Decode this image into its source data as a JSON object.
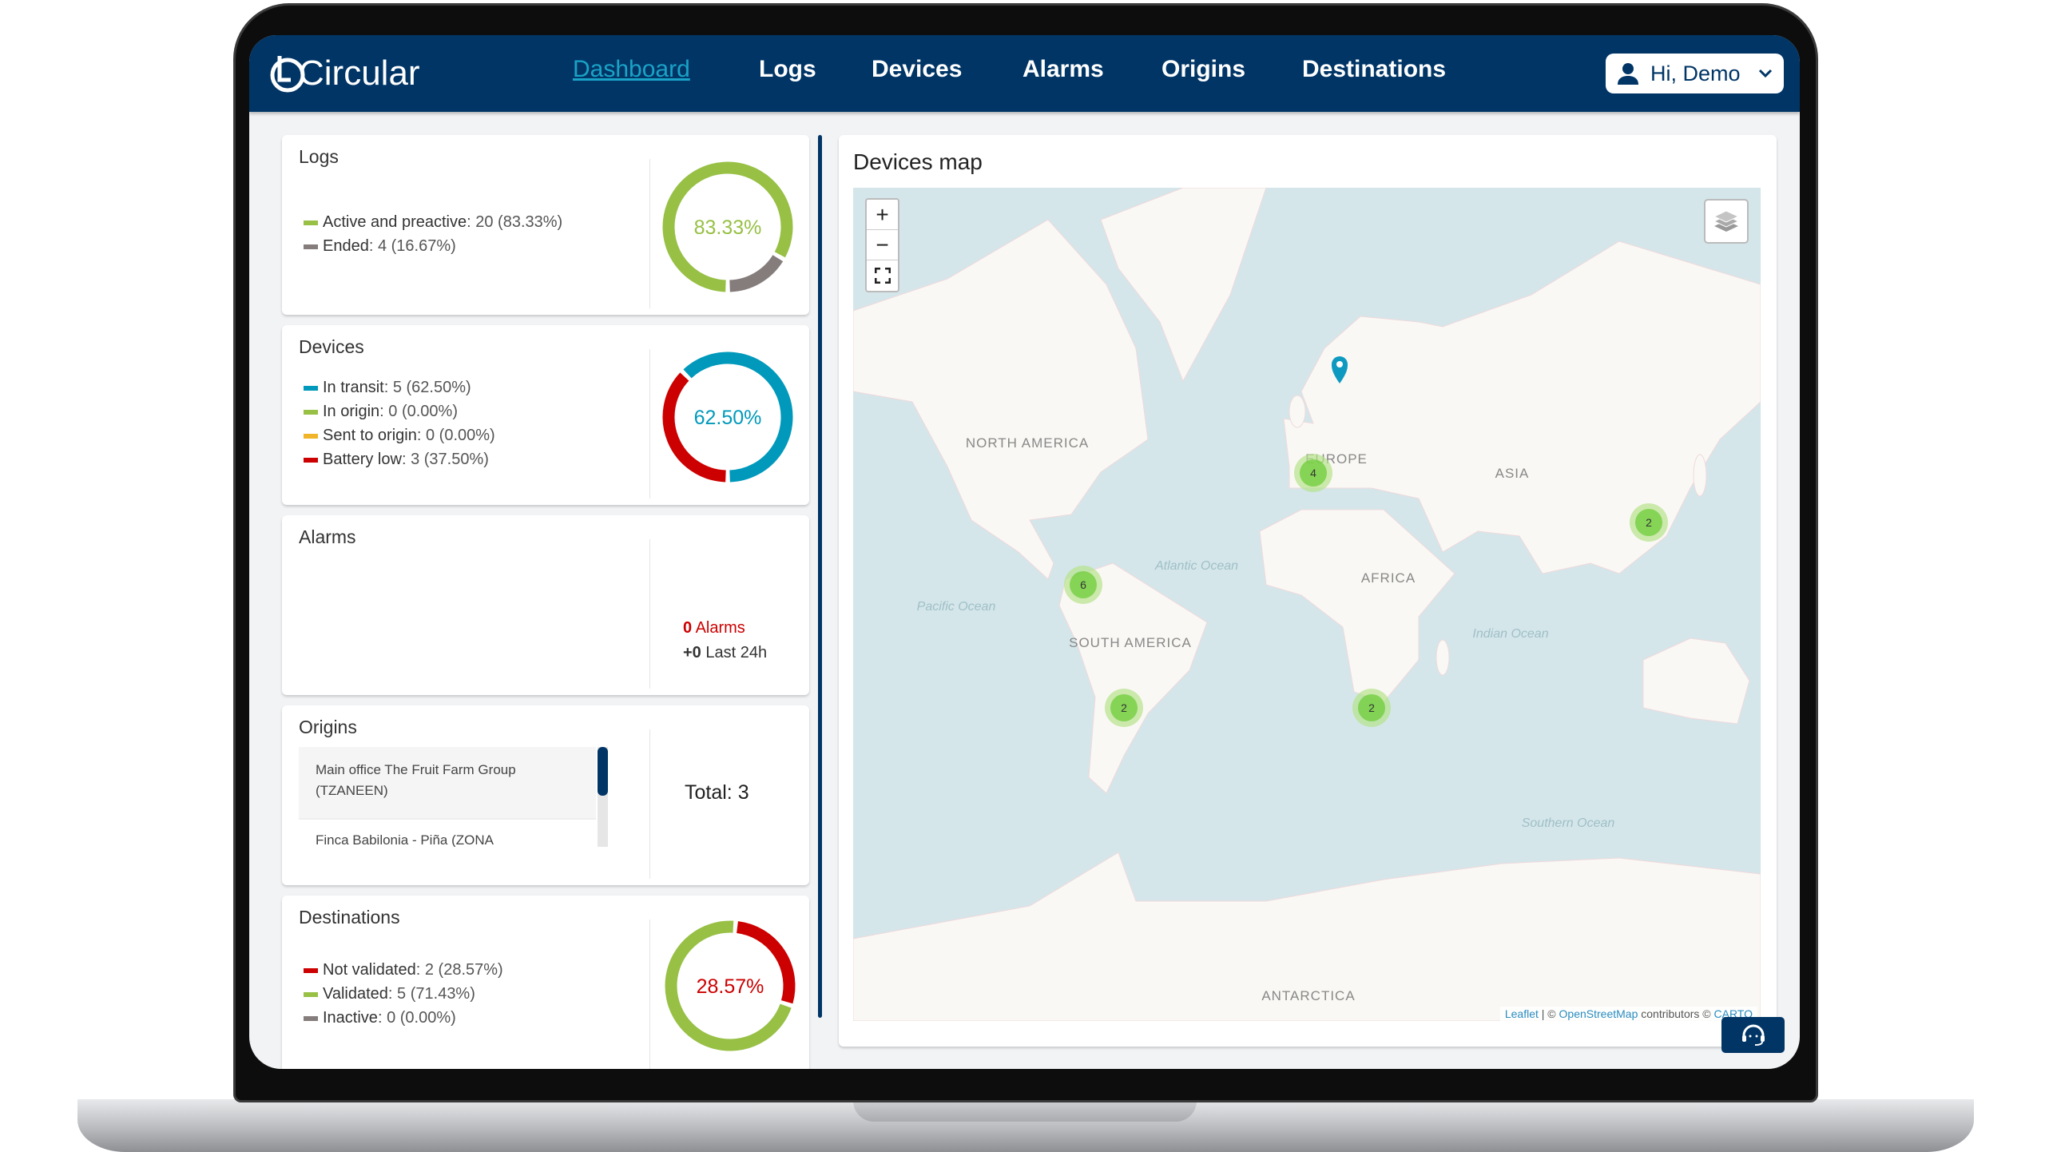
{
  "brand": {
    "name": "Circular"
  },
  "nav": {
    "items": [
      {
        "label": "Dashboard",
        "active": true
      },
      {
        "label": "Logs"
      },
      {
        "label": "Devices"
      },
      {
        "label": "Alarms"
      },
      {
        "label": "Origins"
      },
      {
        "label": "Destinations"
      }
    ],
    "user_label": "Hi, Demo",
    "user_icon": "user-icon",
    "chevron_icon": "chevron-down-icon"
  },
  "colors": {
    "navy": "#003566",
    "green": "#97c045",
    "gray": "#857c7c",
    "blue": "#0099bb",
    "red": "#cc0000",
    "yellow": "#f0b429"
  },
  "logs": {
    "title": "Logs",
    "legend": [
      {
        "label": "Active and preactive",
        "value": "20 (83.33%)",
        "color": "#97c045",
        "percent": 83.33
      },
      {
        "label": "Ended",
        "value": "4 (16.67%)",
        "color": "#857c7c",
        "percent": 16.67
      }
    ],
    "center": "83.33%"
  },
  "devices": {
    "title": "Devices",
    "legend": [
      {
        "label": "In transit",
        "value": "5 (62.50%)",
        "color": "#0099bb",
        "percent": 62.5
      },
      {
        "label": "In origin",
        "value": "0 (0.00%)",
        "color": "#97c045",
        "percent": 0
      },
      {
        "label": "Sent to origin",
        "value": "0 (0.00%)",
        "color": "#f0b429",
        "percent": 0
      },
      {
        "label": "Battery low",
        "value": "3 (37.50%)",
        "color": "#cc0000",
        "percent": 37.5
      }
    ],
    "center": "62.50%"
  },
  "alarms": {
    "title": "Alarms",
    "count": "0",
    "count_label": "Alarms",
    "delta": "+0",
    "delta_label": "Last 24h"
  },
  "origins": {
    "title": "Origins",
    "items": [
      "Main office The Fruit Farm Group (TZANEEN)",
      "Finca Babilonia - Piña (ZONA"
    ],
    "total": "Total: 3"
  },
  "destinations": {
    "title": "Destinations",
    "legend": [
      {
        "label": "Not validated",
        "value": "2 (28.57%)",
        "color": "#cc0000",
        "percent": 28.57
      },
      {
        "label": "Validated",
        "value": "5 (71.43%)",
        "color": "#97c045",
        "percent": 71.43
      },
      {
        "label": "Inactive",
        "value": "0 (0.00%)",
        "color": "#857c7c",
        "percent": 0
      }
    ],
    "center": "28.57%"
  },
  "map": {
    "title": "Devices map",
    "zoom_in": "+",
    "zoom_out": "−",
    "labels": {
      "na": "NORTH AMERICA",
      "eu": "EUROPE",
      "asia": "ASIA",
      "africa": "AFRICA",
      "sa": "SOUTH AMERICA",
      "atl": "Atlantic Ocean",
      "pac": "Pacific Ocean",
      "ind": "Indian Ocean",
      "south": "Southern Ocean",
      "ant": "ANTARCTICA"
    },
    "clusters": [
      {
        "count": "6",
        "region": "Colombia"
      },
      {
        "count": "4",
        "region": "Spain"
      },
      {
        "count": "2",
        "region": "China"
      },
      {
        "count": "2",
        "region": "Argentina"
      },
      {
        "count": "2",
        "region": "South Africa"
      }
    ],
    "attribution": {
      "leaflet": "Leaflet",
      "sep": " | © ",
      "osm": "OpenStreetMap",
      "contrib": " contributors © ",
      "carto": "CARTO"
    }
  },
  "support_icon": "headset-icon"
}
